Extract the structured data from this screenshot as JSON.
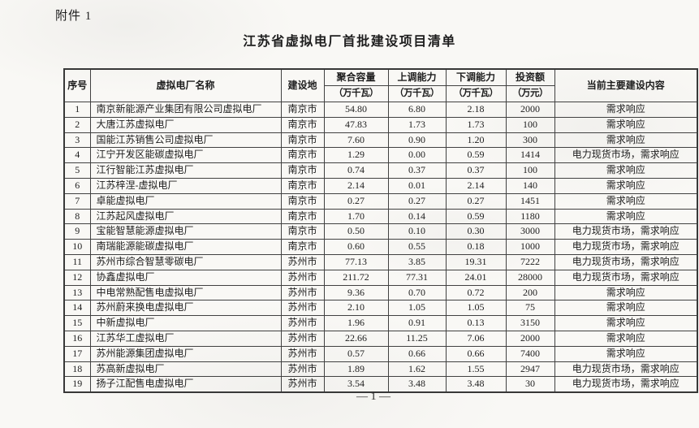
{
  "page": {
    "attachment_label": "附件 1",
    "title": "江苏省虚拟电厂首批建设项目清单",
    "page_number": "— 1 —"
  },
  "table": {
    "columns": [
      {
        "label": "序号",
        "unit": ""
      },
      {
        "label": "虚拟电厂名称",
        "unit": ""
      },
      {
        "label": "建设地",
        "unit": ""
      },
      {
        "label": "聚合容量",
        "unit": "（万千瓦）"
      },
      {
        "label": "上调能力",
        "unit": "（万千瓦）"
      },
      {
        "label": "下调能力",
        "unit": "（万千瓦）"
      },
      {
        "label": "投资额",
        "unit": "（万元）"
      },
      {
        "label": "当前主要建设内容",
        "unit": ""
      }
    ],
    "rows": [
      {
        "no": "1",
        "name": "南京新能源产业集团有限公司虚拟电厂",
        "location": "南京市",
        "capacity": "54.80",
        "up": "6.80",
        "down": "2.18",
        "investment": "2000",
        "content": "需求响应"
      },
      {
        "no": "2",
        "name": "大唐江苏虚拟电厂",
        "location": "南京市",
        "capacity": "47.83",
        "up": "1.73",
        "down": "1.73",
        "investment": "100",
        "content": "需求响应"
      },
      {
        "no": "3",
        "name": "国能江苏销售公司虚拟电厂",
        "location": "南京市",
        "capacity": "7.60",
        "up": "0.90",
        "down": "1.20",
        "investment": "300",
        "content": "需求响应"
      },
      {
        "no": "4",
        "name": "江宁开发区能碳虚拟电厂",
        "location": "南京市",
        "capacity": "1.29",
        "up": "0.00",
        "down": "0.59",
        "investment": "1414",
        "content": "电力现货市场，需求响应"
      },
      {
        "no": "5",
        "name": "江行智能江苏虚拟电厂",
        "location": "南京市",
        "capacity": "0.74",
        "up": "0.37",
        "down": "0.37",
        "investment": "100",
        "content": "需求响应"
      },
      {
        "no": "6",
        "name": "江苏梓涅-虚拟电厂",
        "location": "南京市",
        "capacity": "2.14",
        "up": "0.01",
        "down": "2.14",
        "investment": "140",
        "content": "需求响应"
      },
      {
        "no": "7",
        "name": "卓能虚拟电厂",
        "location": "南京市",
        "capacity": "0.27",
        "up": "0.27",
        "down": "0.27",
        "investment": "1451",
        "content": "需求响应"
      },
      {
        "no": "8",
        "name": "江苏起风虚拟电厂",
        "location": "南京市",
        "capacity": "1.70",
        "up": "0.14",
        "down": "0.59",
        "investment": "1180",
        "content": "需求响应"
      },
      {
        "no": "9",
        "name": "宝能智慧能源虚拟电厂",
        "location": "南京市",
        "capacity": "0.50",
        "up": "0.10",
        "down": "0.30",
        "investment": "3000",
        "content": "电力现货市场，需求响应"
      },
      {
        "no": "10",
        "name": "南瑞能源能碳虚拟电厂",
        "location": "南京市",
        "capacity": "0.60",
        "up": "0.55",
        "down": "0.18",
        "investment": "1000",
        "content": "电力现货市场，需求响应"
      },
      {
        "no": "11",
        "name": "苏州市综合智慧零碳电厂",
        "location": "苏州市",
        "capacity": "77.13",
        "up": "3.85",
        "down": "19.31",
        "investment": "7222",
        "content": "电力现货市场，需求响应"
      },
      {
        "no": "12",
        "name": "协鑫虚拟电厂",
        "location": "苏州市",
        "capacity": "211.72",
        "up": "77.31",
        "down": "24.01",
        "investment": "28000",
        "content": "电力现货市场，需求响应"
      },
      {
        "no": "13",
        "name": "中电常熟配售电虚拟电厂",
        "location": "苏州市",
        "capacity": "9.36",
        "up": "0.70",
        "down": "0.72",
        "investment": "200",
        "content": "需求响应"
      },
      {
        "no": "14",
        "name": "苏州蔚来换电虚拟电厂",
        "location": "苏州市",
        "capacity": "2.10",
        "up": "1.05",
        "down": "1.05",
        "investment": "75",
        "content": "需求响应"
      },
      {
        "no": "15",
        "name": "中新虚拟电厂",
        "location": "苏州市",
        "capacity": "1.96",
        "up": "0.91",
        "down": "0.13",
        "investment": "3150",
        "content": "需求响应"
      },
      {
        "no": "16",
        "name": "江苏华工虚拟电厂",
        "location": "苏州市",
        "capacity": "22.66",
        "up": "11.25",
        "down": "7.06",
        "investment": "2000",
        "content": "需求响应"
      },
      {
        "no": "17",
        "name": "苏州能源集团虚拟电厂",
        "location": "苏州市",
        "capacity": "0.57",
        "up": "0.66",
        "down": "0.66",
        "investment": "7400",
        "content": "需求响应"
      },
      {
        "no": "18",
        "name": "苏高新虚拟电厂",
        "location": "苏州市",
        "capacity": "1.89",
        "up": "1.62",
        "down": "1.55",
        "investment": "2947",
        "content": "电力现货市场，需求响应"
      },
      {
        "no": "19",
        "name": "扬子江配售电虚拟电厂",
        "location": "苏州市",
        "capacity": "3.54",
        "up": "3.48",
        "down": "3.48",
        "investment": "30",
        "content": "电力现货市场，需求响应"
      }
    ]
  }
}
